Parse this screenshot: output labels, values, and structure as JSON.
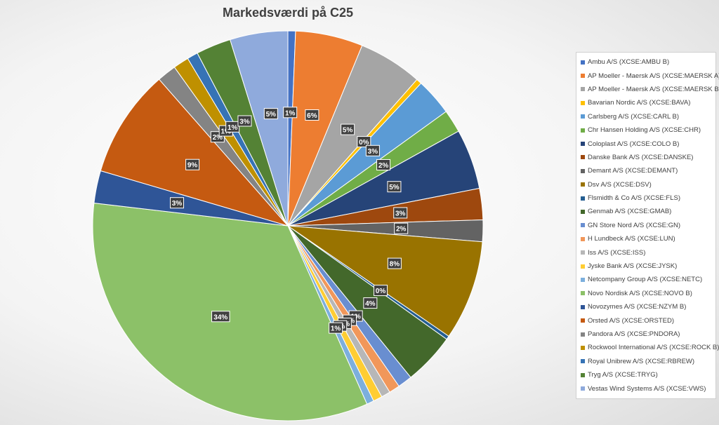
{
  "chart_data": {
    "type": "pie",
    "title": "Markedsværdi på C25",
    "legend_position": "right",
    "slices": [
      {
        "name": "Ambu A/S (XCSE:AMBU B)",
        "value": 0.63,
        "label": "1%",
        "color": "#4472C4"
      },
      {
        "name": "AP Moeller - Maersk A/S (XCSE:MAERSK A)",
        "value": 5.6,
        "label": "6%",
        "color": "#ED7D31"
      },
      {
        "name": "AP Moeller - Maersk A/S (XCSE:MAERSK B)",
        "value": 5.3,
        "label": "5%",
        "color": "#A5A5A5"
      },
      {
        "name": "Bavarian Nordic A/S (XCSE:BAVA)",
        "value": 0.45,
        "label": "0%",
        "color": "#FFC000"
      },
      {
        "name": "Carlsberg A/S (XCSE:CARL B)",
        "value": 3.1,
        "label": "3%",
        "color": "#5B9BD5"
      },
      {
        "name": "Chr Hansen Holding A/S (XCSE:CHR)",
        "value": 1.9,
        "label": "2%",
        "color": "#70AD47"
      },
      {
        "name": "Coloplast A/S (XCSE:COLO B)",
        "value": 5.0,
        "label": "5%",
        "color": "#264478"
      },
      {
        "name": "Danske Bank A/S (XCSE:DANSKE)",
        "value": 2.6,
        "label": "3%",
        "color": "#9E480E"
      },
      {
        "name": "Demant A/S (XCSE:DEMANT)",
        "value": 1.8,
        "label": "2%",
        "color": "#636363"
      },
      {
        "name": "Dsv A/S (XCSE:DSV)",
        "value": 8.3,
        "label": "8%",
        "color": "#997300"
      },
      {
        "name": "Flsmidth & Co A/S (XCSE:FLS)",
        "value": 0.3,
        "label": "0%",
        "color": "#255E91"
      },
      {
        "name": "Genmab A/S (XCSE:GMAB)",
        "value": 4.3,
        "label": "4%",
        "color": "#43682B"
      },
      {
        "name": "GN Store Nord A/S (XCSE:GN)",
        "value": 1.2,
        "label": "1%",
        "color": "#698ED0"
      },
      {
        "name": "H Lundbeck A/S (XCSE:LUN)",
        "value": 0.9,
        "label": "1%",
        "color": "#F1975A"
      },
      {
        "name": "Iss A/S (XCSE:ISS)",
        "value": 0.75,
        "label": "1%",
        "color": "#B7B7B7"
      },
      {
        "name": "Jyske Bank A/S (XCSE:JYSK)",
        "value": 0.75,
        "label": "1%",
        "color": "#FFCD33"
      },
      {
        "name": "Netcompany Group A/S (XCSE:NETC)",
        "value": 0.6,
        "label": "1%",
        "color": "#7CAFDD"
      },
      {
        "name": "Novo Nordisk A/S (XCSE:NOVO B)",
        "value": 33.6,
        "label": "34%",
        "color": "#8CC168"
      },
      {
        "name": "Novozymes A/S (XCSE:NZYM B)",
        "value": 2.7,
        "label": "3%",
        "color": "#2F5597"
      },
      {
        "name": "Orsted A/S (XCSE:ORSTED)",
        "value": 9.0,
        "label": "9%",
        "color": "#C55A11"
      },
      {
        "name": "Pandora A/S (XCSE:PNDORA)",
        "value": 1.6,
        "label": "2%",
        "color": "#848484"
      },
      {
        "name": "Rockwool International A/S (XCSE:ROCK B)",
        "value": 1.3,
        "label": "1%",
        "color": "#BF9000"
      },
      {
        "name": "Royal Unibrew A/S (XCSE:RBREW)",
        "value": 0.9,
        "label": "1%",
        "color": "#3673B5"
      },
      {
        "name": "Tryg A/S (XCSE:TRYG)",
        "value": 2.9,
        "label": "3%",
        "color": "#548235"
      },
      {
        "name": "Vestas Wind Systems A/S (XCSE:VWS)",
        "value": 4.8,
        "label": "5%",
        "color": "#8FAADC"
      }
    ]
  }
}
